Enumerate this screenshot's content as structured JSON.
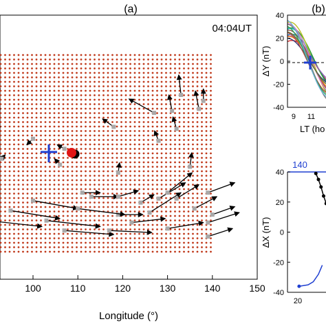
{
  "panel_a": {
    "label": "(a)",
    "time": "04:04UT",
    "xlabel": "Longitude (°)"
  },
  "panel_b": {
    "label": "(b)"
  },
  "colors": {
    "grid_dot": "#c0391b",
    "vector": "#000000",
    "station": "#a9a9a9",
    "cross": "#1f3fd1",
    "epicenter": "#e01515",
    "axis_blue": "#1f3fd1"
  },
  "chart_data": [
    {
      "type": "scatter",
      "title": "04:04UT",
      "xlabel": "Longitude (°)",
      "ylabel": "",
      "xlim": [
        90,
        150
      ],
      "x_ticks": [
        100,
        110,
        120,
        130,
        140,
        150
      ],
      "grid_extent_lon": [
        90,
        140
      ],
      "cross_marker_lon": 104.5,
      "epicenter_marker_lon": 110,
      "vector_field": [
        {
          "x": 91,
          "y": 0.8,
          "dx": 1.7,
          "dy": 0.03
        },
        {
          "x": 91,
          "y": 0.7,
          "dx": 1.7,
          "dy": 0.03
        },
        {
          "x": 91,
          "y": 0.62,
          "dx": 1.7,
          "dy": 0.02
        },
        {
          "x": 93,
          "y": 0.48,
          "dx": 0.8,
          "dy": 0.02
        },
        {
          "x": 100,
          "y": 0.58,
          "dx": -1.4,
          "dy": -0.03
        },
        {
          "x": 106,
          "y": 0.45,
          "dx": -1.2,
          "dy": 0.03
        },
        {
          "x": 107,
          "y": 0.53,
          "dx": -1.6,
          "dy": 0.02
        },
        {
          "x": 118,
          "y": 0.64,
          "dx": -2.5,
          "dy": 0.04
        },
        {
          "x": 127,
          "y": 0.71,
          "dx": -5.6,
          "dy": 0.07
        },
        {
          "x": 128,
          "y": 0.57,
          "dx": -0.9,
          "dy": 0.05
        },
        {
          "x": 131,
          "y": 0.72,
          "dx": -0.7,
          "dy": 0.08
        },
        {
          "x": 132,
          "y": 0.63,
          "dx": -0.8,
          "dy": 0.06
        },
        {
          "x": 133,
          "y": 0.8,
          "dx": -0.5,
          "dy": 0.1
        },
        {
          "x": 137,
          "y": 0.73,
          "dx": -0.8,
          "dy": 0.09
        },
        {
          "x": 138,
          "y": 0.77,
          "dx": 0.0,
          "dy": 0.06
        },
        {
          "x": 135,
          "y": 0.44,
          "dx": 0.4,
          "dy": 0.07
        },
        {
          "x": 119,
          "y": 0.41,
          "dx": 0.3,
          "dy": 0.05
        },
        {
          "x": 111,
          "y": 0.31,
          "dx": 4.0,
          "dy": 0.0
        },
        {
          "x": 113,
          "y": 0.29,
          "dx": 6.0,
          "dy": 0.0
        },
        {
          "x": 119,
          "y": 0.29,
          "dx": 4.5,
          "dy": 0.03
        },
        {
          "x": 119,
          "y": 0.2,
          "dx": 5.5,
          "dy": 0.0
        },
        {
          "x": 124,
          "y": 0.26,
          "dx": 3.0,
          "dy": 0.04
        },
        {
          "x": 126,
          "y": 0.21,
          "dx": 7.0,
          "dy": 0.1
        },
        {
          "x": 128,
          "y": 0.28,
          "dx": 6.0,
          "dy": 0.08
        },
        {
          "x": 130,
          "y": 0.31,
          "dx": 5.5,
          "dy": 0.1
        },
        {
          "x": 132,
          "y": 0.28,
          "dx": 5.0,
          "dy": 0.07
        },
        {
          "x": 136,
          "y": 0.23,
          "dx": 5.0,
          "dy": 0.06
        },
        {
          "x": 139,
          "y": 0.31,
          "dx": 6.0,
          "dy": 0.05
        },
        {
          "x": 140,
          "y": 0.2,
          "dx": 5.0,
          "dy": 0.04
        },
        {
          "x": 95,
          "y": 0.22,
          "dx": 11.0,
          "dy": -0.04
        },
        {
          "x": 103,
          "y": 0.17,
          "dx": 12.0,
          "dy": -0.03
        },
        {
          "x": 100,
          "y": 0.27,
          "dx": 10.0,
          "dy": -0.04
        },
        {
          "x": 110,
          "y": 0.23,
          "dx": 10.5,
          "dy": -0.03
        },
        {
          "x": 90,
          "y": 0.17,
          "dx": 12.0,
          "dy": -0.03
        },
        {
          "x": 107,
          "y": 0.12,
          "dx": 11.0,
          "dy": -0.02
        },
        {
          "x": 117,
          "y": 0.12,
          "dx": 9.5,
          "dy": -0.01
        },
        {
          "x": 122,
          "y": 0.16,
          "dx": 7.5,
          "dy": 0.02
        },
        {
          "x": 130,
          "y": 0.13,
          "dx": 8.0,
          "dy": 0.03
        },
        {
          "x": 139,
          "y": 0.16,
          "dx": 7.0,
          "dy": 0.05
        },
        {
          "x": 139,
          "y": 0.09,
          "dx": 5.5,
          "dy": 0.04
        }
      ]
    },
    {
      "type": "line",
      "ylabel": "ΔY (nT)",
      "xlabel": "LT (ho",
      "y_ticks": [
        40,
        20,
        0,
        -20,
        -40
      ],
      "x_ticks": [
        9,
        11
      ],
      "ylim": [
        -40,
        40
      ],
      "xlim": [
        8.3,
        13.0
      ],
      "series_colors": [
        "#d62728",
        "#1f77b4",
        "#2ca02c",
        "#17becf",
        "#bcbd22",
        "#9467bd",
        "#ff7f0e",
        "#8c564b",
        "#e377c2",
        "#7f7f7f",
        "#393b79",
        "#637939",
        "#ad494a",
        "#31a354",
        "#6baed6"
      ],
      "marker_cross": {
        "x": 11.0,
        "y": 0
      }
    },
    {
      "type": "line",
      "ylabel": "ΔX (nT)",
      "top_axis_tick": "140",
      "y_ticks": [
        40,
        20,
        0,
        -20,
        -40
      ],
      "x_ticks": [
        20
      ],
      "ylim": [
        -40,
        40
      ],
      "xlim": [
        16,
        32
      ],
      "series": [
        {
          "values": [
            {
              "x": 27,
              "y": 39
            },
            {
              "x": 28,
              "y": 35
            },
            {
              "x": 29,
              "y": 30
            },
            {
              "x": 30,
              "y": 24
            },
            {
              "x": 31,
              "y": 19
            },
            {
              "x": 32,
              "y": 14
            }
          ]
        },
        {
          "values": [
            {
              "x": 20.5,
              "y": -36
            },
            {
              "x": 24,
              "y": -35
            },
            {
              "x": 26,
              "y": -33
            },
            {
              "x": 28,
              "y": -28
            },
            {
              "x": 29.5,
              "y": -22
            }
          ]
        }
      ]
    }
  ]
}
